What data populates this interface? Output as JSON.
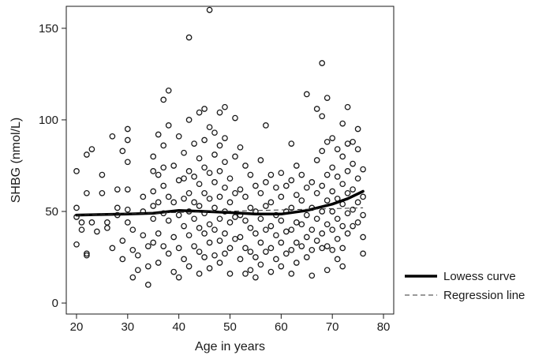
{
  "chart_data": {
    "type": "scatter",
    "title": "",
    "xlabel": "Age in years",
    "ylabel": "SHBG (nmol/L)",
    "xlim": [
      18,
      82
    ],
    "ylim": [
      -6,
      162
    ],
    "xticks": [
      "20",
      "30",
      "40",
      "50",
      "60",
      "70",
      "80"
    ],
    "yticks": [
      "0",
      "50",
      "100",
      "150"
    ],
    "grid": false,
    "legend_position": "outside-right-bottom",
    "legend": [
      {
        "label": "Lowess curve",
        "style": "solid-thick"
      },
      {
        "label": "Regression line",
        "style": "dashed"
      }
    ],
    "colors": {
      "points": "#1a1a1a",
      "lowess": "#000000",
      "regression": "#333333"
    },
    "series": [
      {
        "kind": "points",
        "marker": "open-circle",
        "points": [
          [
            20,
            72
          ],
          [
            20,
            52
          ],
          [
            20,
            47
          ],
          [
            21,
            44
          ],
          [
            21,
            40
          ],
          [
            20,
            32
          ],
          [
            22,
            27
          ],
          [
            22,
            26
          ],
          [
            22,
            60
          ],
          [
            22,
            81
          ],
          [
            23,
            84
          ],
          [
            23,
            44
          ],
          [
            24,
            39
          ],
          [
            25,
            70
          ],
          [
            25,
            60
          ],
          [
            26,
            41
          ],
          [
            26,
            44
          ],
          [
            27,
            91
          ],
          [
            27,
            30
          ],
          [
            28,
            48
          ],
          [
            28,
            52
          ],
          [
            28,
            62
          ],
          [
            29,
            83
          ],
          [
            29,
            34
          ],
          [
            29,
            24
          ],
          [
            30,
            95
          ],
          [
            30,
            89
          ],
          [
            30,
            77
          ],
          [
            30,
            62
          ],
          [
            30,
            51
          ],
          [
            30,
            44
          ],
          [
            31,
            29
          ],
          [
            31,
            14
          ],
          [
            31,
            40
          ],
          [
            32,
            26
          ],
          [
            32,
            18
          ],
          [
            33,
            58
          ],
          [
            33,
            50
          ],
          [
            33,
            37
          ],
          [
            34,
            31
          ],
          [
            34,
            20
          ],
          [
            34,
            10
          ],
          [
            35,
            80
          ],
          [
            35,
            72
          ],
          [
            35,
            61
          ],
          [
            35,
            53
          ],
          [
            35,
            46
          ],
          [
            35,
            33
          ],
          [
            36,
            92
          ],
          [
            36,
            70
          ],
          [
            36,
            55
          ],
          [
            36,
            38
          ],
          [
            36,
            22
          ],
          [
            37,
            111
          ],
          [
            37,
            86
          ],
          [
            37,
            74
          ],
          [
            37,
            64
          ],
          [
            37,
            49
          ],
          [
            37,
            31
          ],
          [
            38,
            116
          ],
          [
            38,
            97
          ],
          [
            38,
            58
          ],
          [
            38,
            45
          ],
          [
            38,
            27
          ],
          [
            39,
            75
          ],
          [
            39,
            55
          ],
          [
            39,
            36
          ],
          [
            39,
            17
          ],
          [
            40,
            91
          ],
          [
            40,
            67
          ],
          [
            40,
            48
          ],
          [
            40,
            30
          ],
          [
            40,
            14
          ],
          [
            41,
            82
          ],
          [
            41,
            68
          ],
          [
            41,
            57
          ],
          [
            41,
            42
          ],
          [
            41,
            24
          ],
          [
            42,
            145
          ],
          [
            42,
            100
          ],
          [
            42,
            72
          ],
          [
            42,
            60
          ],
          [
            42,
            50
          ],
          [
            42,
            37
          ],
          [
            42,
            20
          ],
          [
            43,
            87
          ],
          [
            43,
            69
          ],
          [
            43,
            55
          ],
          [
            43,
            46
          ],
          [
            43,
            31
          ],
          [
            44,
            104
          ],
          [
            44,
            79
          ],
          [
            44,
            65
          ],
          [
            44,
            53
          ],
          [
            44,
            41
          ],
          [
            44,
            28
          ],
          [
            44,
            16
          ],
          [
            45,
            106
          ],
          [
            45,
            89
          ],
          [
            45,
            74
          ],
          [
            45,
            60
          ],
          [
            45,
            49
          ],
          [
            45,
            38
          ],
          [
            45,
            25
          ],
          [
            46,
            160
          ],
          [
            46,
            96
          ],
          [
            46,
            71
          ],
          [
            46,
            57
          ],
          [
            46,
            43
          ],
          [
            46,
            33
          ],
          [
            46,
            19
          ],
          [
            47,
            93
          ],
          [
            47,
            81
          ],
          [
            47,
            66
          ],
          [
            47,
            52
          ],
          [
            47,
            40
          ],
          [
            47,
            26
          ],
          [
            48,
            104
          ],
          [
            48,
            86
          ],
          [
            48,
            72
          ],
          [
            48,
            58
          ],
          [
            48,
            46
          ],
          [
            48,
            34
          ],
          [
            48,
            22
          ],
          [
            49,
            107
          ],
          [
            49,
            90
          ],
          [
            49,
            77
          ],
          [
            49,
            63
          ],
          [
            49,
            50
          ],
          [
            49,
            38
          ],
          [
            49,
            27
          ],
          [
            50,
            16
          ],
          [
            50,
            68
          ],
          [
            50,
            55
          ],
          [
            50,
            44
          ],
          [
            50,
            30
          ],
          [
            51,
            101
          ],
          [
            51,
            80
          ],
          [
            51,
            60
          ],
          [
            51,
            47
          ],
          [
            51,
            35
          ],
          [
            52,
            85
          ],
          [
            52,
            62
          ],
          [
            52,
            48
          ],
          [
            52,
            36
          ],
          [
            52,
            24
          ],
          [
            53,
            75
          ],
          [
            53,
            58
          ],
          [
            53,
            45
          ],
          [
            53,
            30
          ],
          [
            53,
            16
          ],
          [
            54,
            70
          ],
          [
            54,
            52
          ],
          [
            54,
            41
          ],
          [
            54,
            28
          ],
          [
            54,
            18
          ],
          [
            55,
            64
          ],
          [
            55,
            50
          ],
          [
            55,
            38
          ],
          [
            55,
            25
          ],
          [
            55,
            14
          ],
          [
            56,
            78
          ],
          [
            56,
            60
          ],
          [
            56,
            46
          ],
          [
            56,
            33
          ],
          [
            56,
            21
          ],
          [
            57,
            97
          ],
          [
            57,
            66
          ],
          [
            57,
            53
          ],
          [
            57,
            40
          ],
          [
            57,
            28
          ],
          [
            58,
            70
          ],
          [
            58,
            55
          ],
          [
            58,
            42
          ],
          [
            58,
            30
          ],
          [
            58,
            17
          ],
          [
            59,
            63
          ],
          [
            59,
            48
          ],
          [
            59,
            37
          ],
          [
            59,
            24
          ],
          [
            60,
            71
          ],
          [
            60,
            58
          ],
          [
            60,
            45
          ],
          [
            60,
            33
          ],
          [
            60,
            20
          ],
          [
            61,
            64
          ],
          [
            61,
            50
          ],
          [
            61,
            39
          ],
          [
            61,
            27
          ],
          [
            62,
            87
          ],
          [
            62,
            67
          ],
          [
            62,
            52
          ],
          [
            62,
            40
          ],
          [
            62,
            29
          ],
          [
            62,
            16
          ],
          [
            63,
            75
          ],
          [
            63,
            59
          ],
          [
            63,
            44
          ],
          [
            63,
            33
          ],
          [
            63,
            22
          ],
          [
            64,
            70
          ],
          [
            64,
            56
          ],
          [
            64,
            43
          ],
          [
            64,
            31
          ],
          [
            65,
            114
          ],
          [
            65,
            63
          ],
          [
            65,
            48
          ],
          [
            65,
            36
          ],
          [
            65,
            25
          ],
          [
            66,
            66
          ],
          [
            66,
            52
          ],
          [
            66,
            40
          ],
          [
            66,
            29
          ],
          [
            66,
            15
          ],
          [
            67,
            106
          ],
          [
            67,
            78
          ],
          [
            67,
            60
          ],
          [
            67,
            46
          ],
          [
            67,
            34
          ],
          [
            68,
            131
          ],
          [
            68,
            102
          ],
          [
            68,
            83
          ],
          [
            68,
            64
          ],
          [
            68,
            50
          ],
          [
            68,
            38
          ],
          [
            68,
            30
          ],
          [
            69,
            112
          ],
          [
            69,
            88
          ],
          [
            69,
            70
          ],
          [
            69,
            56
          ],
          [
            69,
            43
          ],
          [
            69,
            31
          ],
          [
            69,
            18
          ],
          [
            70,
            90
          ],
          [
            70,
            74
          ],
          [
            70,
            61
          ],
          [
            70,
            50
          ],
          [
            70,
            40
          ],
          [
            70,
            29
          ],
          [
            71,
            84
          ],
          [
            71,
            69
          ],
          [
            71,
            57
          ],
          [
            71,
            46
          ],
          [
            71,
            35
          ],
          [
            71,
            24
          ],
          [
            72,
            98
          ],
          [
            72,
            80
          ],
          [
            72,
            65
          ],
          [
            72,
            54
          ],
          [
            72,
            42
          ],
          [
            72,
            30
          ],
          [
            72,
            20
          ],
          [
            73,
            107
          ],
          [
            73,
            87
          ],
          [
            73,
            72
          ],
          [
            73,
            60
          ],
          [
            73,
            49
          ],
          [
            73,
            38
          ],
          [
            74,
            88
          ],
          [
            74,
            76
          ],
          [
            74,
            62
          ],
          [
            74,
            51
          ],
          [
            74,
            42
          ],
          [
            75,
            95
          ],
          [
            75,
            84
          ],
          [
            75,
            68
          ],
          [
            75,
            55
          ],
          [
            75,
            44
          ],
          [
            76,
            73
          ],
          [
            76,
            58
          ],
          [
            76,
            48
          ],
          [
            76,
            36
          ],
          [
            76,
            27
          ]
        ]
      },
      {
        "name": "Lowess curve",
        "kind": "line",
        "style": "solid-thick",
        "x": [
          20,
          25,
          30,
          35,
          40,
          45,
          50,
          55,
          60,
          65,
          70,
          73,
          76
        ],
        "y": [
          48,
          48.3,
          48.6,
          49,
          50.5,
          50,
          49.4,
          48.6,
          48.6,
          50.5,
          54,
          57,
          61
        ]
      },
      {
        "name": "Regression line",
        "kind": "line",
        "style": "dashed",
        "x": [
          20,
          76
        ],
        "y": [
          48,
          52
        ]
      }
    ]
  }
}
